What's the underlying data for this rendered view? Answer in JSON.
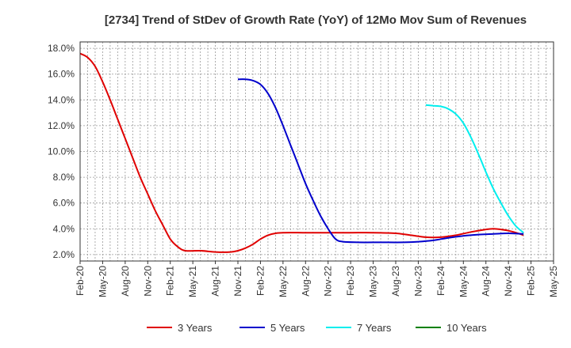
{
  "chart_data": {
    "type": "line",
    "title": "[2734]  Trend of StDev of Growth Rate (YoY) of 12Mo Mov Sum of Revenues",
    "xlabel": "",
    "ylabel": "",
    "ylim": [
      1.5,
      18.5
    ],
    "y_ticks": [
      2.0,
      4.0,
      6.0,
      8.0,
      10.0,
      12.0,
      14.0,
      16.0,
      18.0
    ],
    "y_tick_labels": [
      "2.0%",
      "4.0%",
      "6.0%",
      "8.0%",
      "10.0%",
      "12.0%",
      "14.0%",
      "16.0%",
      "18.0%"
    ],
    "x_tick_labels": [
      "Feb-20",
      "May-20",
      "Aug-20",
      "Nov-20",
      "Feb-21",
      "May-21",
      "Aug-21",
      "Nov-21",
      "Feb-22",
      "May-22",
      "Aug-22",
      "Nov-22",
      "Feb-23",
      "May-23",
      "Aug-23",
      "Nov-23",
      "Feb-24",
      "May-24",
      "Aug-24",
      "Nov-24",
      "Feb-25",
      "May-25"
    ],
    "x_range_months": [
      0,
      63
    ],
    "grid": true,
    "legend_position": "bottom",
    "series": [
      {
        "name": "3 Years",
        "color": "#e00000",
        "points": [
          [
            0,
            17.6
          ],
          [
            1,
            17.3
          ],
          [
            2,
            16.6
          ],
          [
            3,
            15.4
          ],
          [
            4,
            14.0
          ],
          [
            5,
            12.5
          ],
          [
            6,
            11.0
          ],
          [
            7,
            9.5
          ],
          [
            8,
            8.0
          ],
          [
            9,
            6.7
          ],
          [
            10,
            5.4
          ],
          [
            11,
            4.3
          ],
          [
            12,
            3.2
          ],
          [
            13,
            2.6
          ],
          [
            14,
            2.3
          ],
          [
            16,
            2.3
          ],
          [
            18,
            2.2
          ],
          [
            20,
            2.2
          ],
          [
            21,
            2.3
          ],
          [
            22,
            2.5
          ],
          [
            23,
            2.8
          ],
          [
            24,
            3.2
          ],
          [
            25,
            3.5
          ],
          [
            26,
            3.65
          ],
          [
            27,
            3.7
          ],
          [
            30,
            3.7
          ],
          [
            33,
            3.7
          ],
          [
            36,
            3.7
          ],
          [
            39,
            3.7
          ],
          [
            42,
            3.65
          ],
          [
            44,
            3.5
          ],
          [
            46,
            3.35
          ],
          [
            48,
            3.35
          ],
          [
            50,
            3.5
          ],
          [
            52,
            3.75
          ],
          [
            54,
            3.95
          ],
          [
            55,
            4.0
          ],
          [
            56,
            3.95
          ],
          [
            57,
            3.85
          ],
          [
            58,
            3.7
          ],
          [
            59,
            3.5
          ]
        ]
      },
      {
        "name": "5 Years",
        "color": "#0000cc",
        "points": [
          [
            21,
            15.6
          ],
          [
            22,
            15.6
          ],
          [
            23,
            15.5
          ],
          [
            24,
            15.2
          ],
          [
            25,
            14.5
          ],
          [
            26,
            13.4
          ],
          [
            27,
            12.0
          ],
          [
            28,
            10.5
          ],
          [
            29,
            9.0
          ],
          [
            30,
            7.5
          ],
          [
            31,
            6.2
          ],
          [
            32,
            5.0
          ],
          [
            33,
            4.0
          ],
          [
            34,
            3.2
          ],
          [
            35,
            3.0
          ],
          [
            37,
            2.95
          ],
          [
            40,
            2.95
          ],
          [
            43,
            2.95
          ],
          [
            45,
            3.0
          ],
          [
            47,
            3.1
          ],
          [
            49,
            3.3
          ],
          [
            51,
            3.45
          ],
          [
            53,
            3.55
          ],
          [
            55,
            3.6
          ],
          [
            57,
            3.65
          ],
          [
            59,
            3.6
          ]
        ]
      },
      {
        "name": "7 Years",
        "color": "#00eeee",
        "points": [
          [
            46,
            13.6
          ],
          [
            47,
            13.55
          ],
          [
            48,
            13.5
          ],
          [
            49,
            13.3
          ],
          [
            50,
            12.9
          ],
          [
            51,
            12.2
          ],
          [
            52,
            11.1
          ],
          [
            53,
            9.8
          ],
          [
            54,
            8.4
          ],
          [
            55,
            7.1
          ],
          [
            56,
            6.0
          ],
          [
            57,
            5.0
          ],
          [
            58,
            4.2
          ],
          [
            59,
            3.7
          ]
        ]
      },
      {
        "name": "10 Years",
        "color": "#008000",
        "points": []
      }
    ]
  }
}
